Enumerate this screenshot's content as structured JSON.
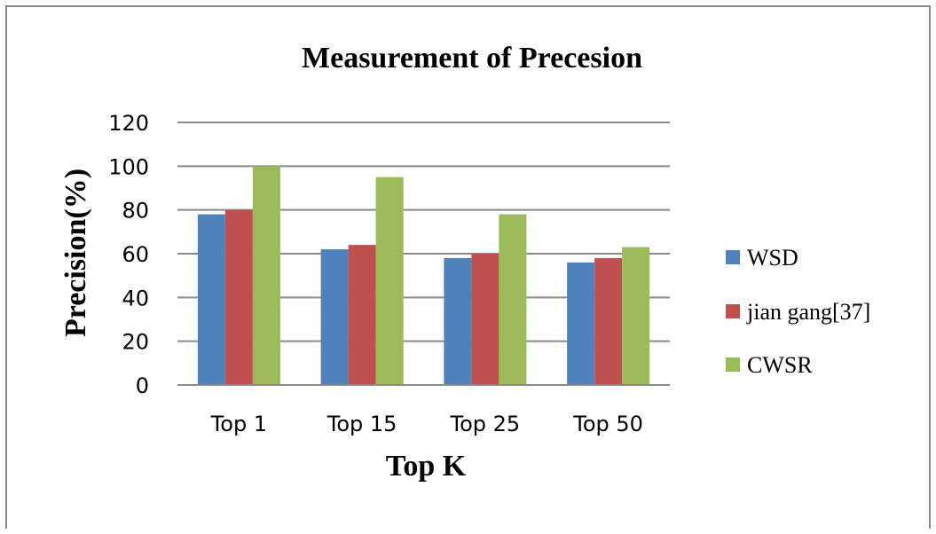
{
  "chart_data": {
    "type": "bar",
    "title": "Measurement of Precesion",
    "xlabel": "Top K",
    "ylabel": "Precision(%)",
    "categories": [
      "Top 1",
      "Top 15",
      "Top 25",
      "Top 50"
    ],
    "series": [
      {
        "name": "WSD",
        "values": [
          78,
          62,
          58,
          56
        ]
      },
      {
        "name": "jian gang[37]",
        "values": [
          80,
          64,
          60,
          58
        ]
      },
      {
        "name": "CWSR",
        "values": [
          100,
          95,
          78,
          63
        ]
      }
    ],
    "yticks": [
      0,
      20,
      40,
      60,
      80,
      100,
      120
    ],
    "ylim": [
      0,
      120
    ],
    "grid": true,
    "legend_position": "right",
    "colors": [
      "#4f81bd",
      "#c0504d",
      "#9bbb59"
    ]
  }
}
